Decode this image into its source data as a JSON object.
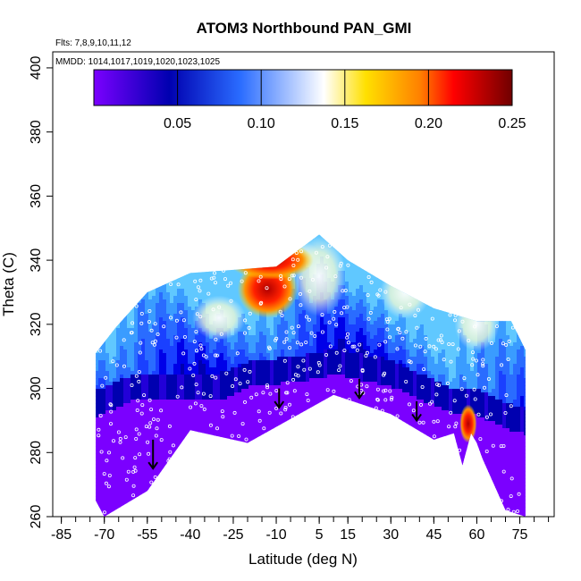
{
  "chart_data": {
    "type": "heatmap",
    "title": "ATOM3 Northbound PAN_GMI",
    "flights_note": "Flts: 7,8,9,10,11,12",
    "dates_note": "MMDD: 1014,1017,1019,1020,1023,1025",
    "xlabel": "Latitude (deg N)",
    "ylabel": "Theta (C)",
    "xlim": [
      -88,
      87
    ],
    "ylim": [
      260,
      405
    ],
    "x_ticks": [
      "-85",
      "-70",
      "-55",
      "-40",
      "-25",
      "-10",
      "5",
      "15",
      "30",
      "45",
      "60",
      "75"
    ],
    "y_ticks": [
      "260",
      "280",
      "300",
      "320",
      "340",
      "360",
      "380",
      "400"
    ],
    "colorbar": {
      "range": [
        0,
        0.25
      ],
      "ticks": [
        "0.05",
        "0.10",
        "0.15",
        "0.20",
        "0.25"
      ],
      "colors": [
        "#7b00ff",
        "#0000b0",
        "#2a6cff",
        "#ffffff",
        "#ffe000",
        "#ff8000",
        "#ff0000",
        "#700000"
      ]
    },
    "domain_outline": {
      "top": [
        [
          -73,
          311
        ],
        [
          -66,
          319
        ],
        [
          -55,
          330
        ],
        [
          -40,
          336
        ],
        [
          -25,
          337
        ],
        [
          -10,
          338
        ],
        [
          5,
          348
        ],
        [
          15,
          340
        ],
        [
          30,
          332
        ],
        [
          45,
          325
        ],
        [
          60,
          321
        ],
        [
          72,
          321
        ],
        [
          77,
          312
        ]
      ],
      "bottom": [
        [
          77,
          260
        ],
        [
          70,
          262
        ],
        [
          62,
          278
        ],
        [
          60,
          283
        ],
        [
          58,
          286
        ],
        [
          55,
          276
        ],
        [
          52,
          286
        ],
        [
          45,
          284
        ],
        [
          30,
          292
        ],
        [
          10,
          298
        ],
        [
          -20,
          283
        ],
        [
          -40,
          287
        ],
        [
          -55,
          268
        ],
        [
          -70,
          260
        ],
        [
          -73,
          265
        ]
      ]
    },
    "layers": {
      "boundary_low_high": [
        [
          -73,
          296
        ],
        [
          -60,
          301
        ],
        [
          -45,
          301
        ],
        [
          -30,
          301
        ],
        [
          -20,
          305
        ],
        [
          -10,
          306
        ],
        [
          0,
          307
        ],
        [
          10,
          309
        ],
        [
          20,
          307
        ],
        [
          30,
          305
        ],
        [
          40,
          301
        ],
        [
          50,
          297
        ],
        [
          60,
          296
        ],
        [
          70,
          292
        ],
        [
          77,
          290
        ]
      ]
    },
    "hotspots": [
      {
        "lat": -13,
        "theta": 331,
        "value": 0.24,
        "lat_radius": 7,
        "theta_radius": 6
      },
      {
        "lat": -12,
        "theta": 340,
        "value": 0.17,
        "lat_radius": 10,
        "theta_radius": 4
      },
      {
        "lat": 57,
        "theta": 289,
        "value": 0.18,
        "lat_radius": 2,
        "theta_radius": 4
      }
    ],
    "arrows": [
      {
        "lat": -53,
        "theta_top": 284,
        "theta_tip": 275
      },
      {
        "lat": -9,
        "theta_top": 300,
        "theta_tip": 294
      },
      {
        "lat": 19,
        "theta_top": 303,
        "theta_tip": 297
      },
      {
        "lat": 39,
        "theta_top": 296,
        "theta_tip": 290
      }
    ]
  }
}
